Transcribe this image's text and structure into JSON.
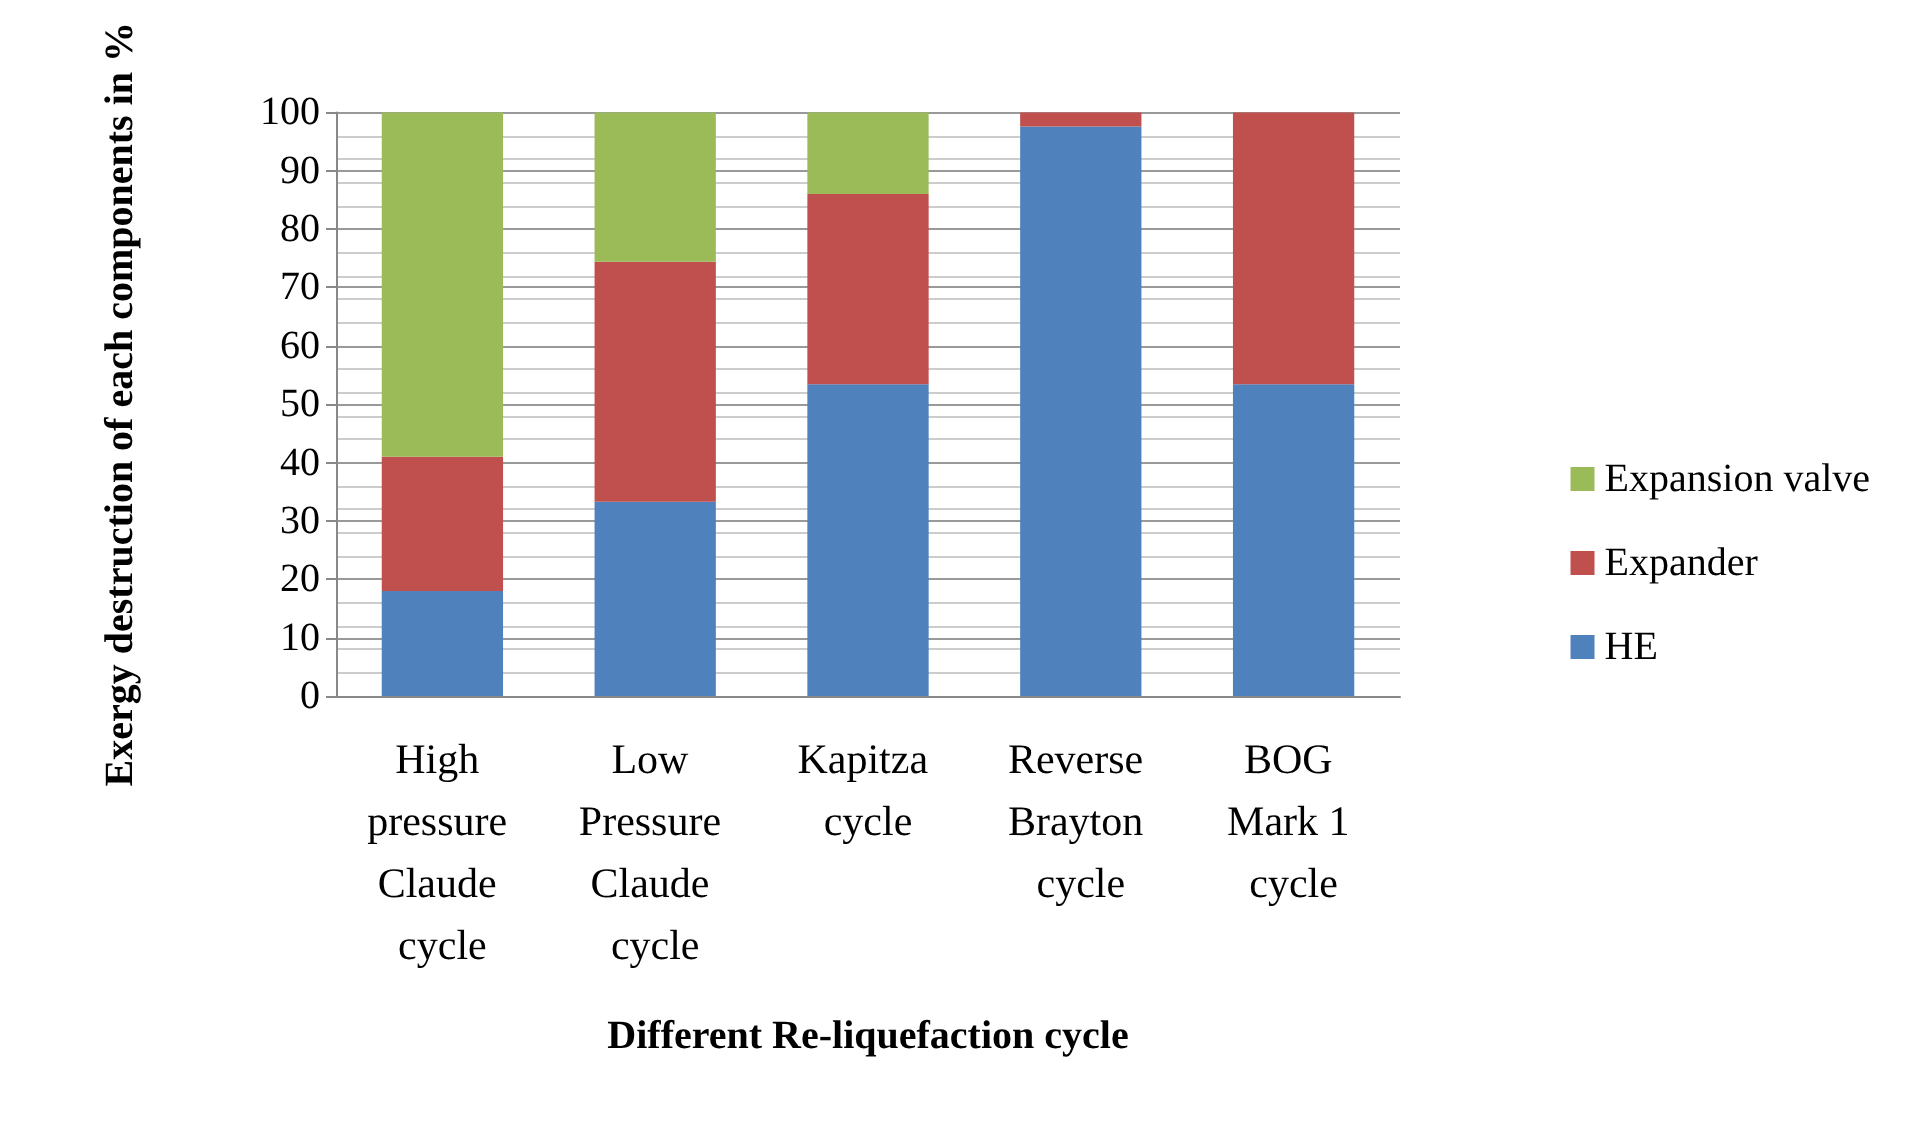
{
  "chart_data": {
    "type": "bar",
    "stacked": true,
    "xlabel": "Different Re-liquefaction cycle",
    "ylabel": "Exergy destruction of each components in %",
    "categories": [
      "High pressure Claude cycle",
      "Low Pressure Claude cycle",
      "Kapitza cycle",
      "Reverse Brayton cycle",
      "BOG Mark 1 cycle"
    ],
    "series": [
      {
        "name": "HE",
        "color": "#4f81bd",
        "values": [
          18,
          33.3,
          53.4,
          97.6,
          53.4
        ]
      },
      {
        "name": "Expander",
        "color": "#c0504d",
        "values": [
          23,
          41.1,
          32.6,
          2.4,
          46.6
        ]
      },
      {
        "name": "Expansion valve",
        "color": "#9bbb59",
        "values": [
          59,
          25.6,
          14,
          0,
          0
        ]
      }
    ],
    "ylim": [
      0,
      100
    ],
    "yticks": [
      0,
      10,
      20,
      30,
      40,
      50,
      60,
      70,
      80,
      90,
      100
    ],
    "grid": true,
    "legend": "right"
  }
}
